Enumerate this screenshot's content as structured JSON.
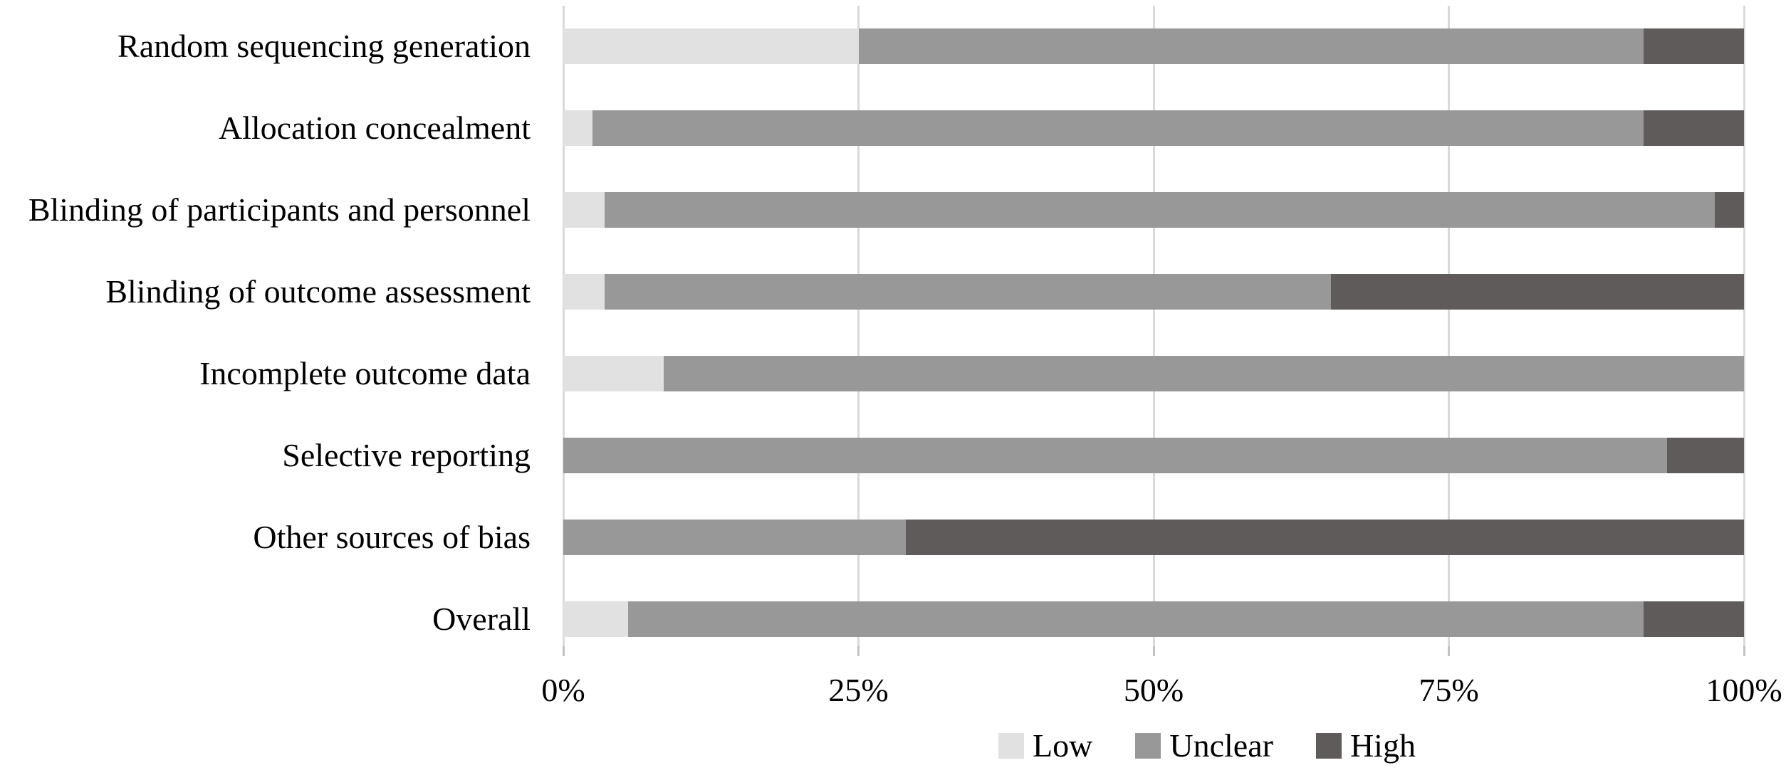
{
  "chart_data": {
    "type": "bar",
    "orientation": "horizontal",
    "stacked": true,
    "title": "",
    "xlabel": "",
    "ylabel": "",
    "xlim": [
      0,
      100
    ],
    "x_ticks": [
      "0%",
      "25%",
      "50%",
      "75%",
      "100%"
    ],
    "grid": "vertical",
    "gridline_color": "#d9d9d9",
    "tick_color": "#c2c2c2",
    "legend_position": "bottom",
    "categories": [
      "Random sequencing generation",
      "Allocation concealment",
      "Blinding of participants and personnel",
      "Blinding of outcome assessment",
      "Incomplete outcome data",
      "Selective reporting",
      "Other sources of bias",
      "Overall"
    ],
    "series": [
      {
        "name": "Low",
        "color": "#e1e1e1",
        "values": [
          25,
          2.5,
          3.5,
          3.5,
          8.5,
          0,
          0,
          5.5
        ]
      },
      {
        "name": "Unclear",
        "color": "#989898",
        "values": [
          66.5,
          89,
          94,
          61.5,
          91.5,
          93.5,
          29,
          86
        ]
      },
      {
        "name": "High",
        "color": "#5f5b5b",
        "values": [
          8.5,
          8.5,
          2.5,
          35,
          0,
          6.5,
          71,
          8.5
        ]
      }
    ]
  }
}
